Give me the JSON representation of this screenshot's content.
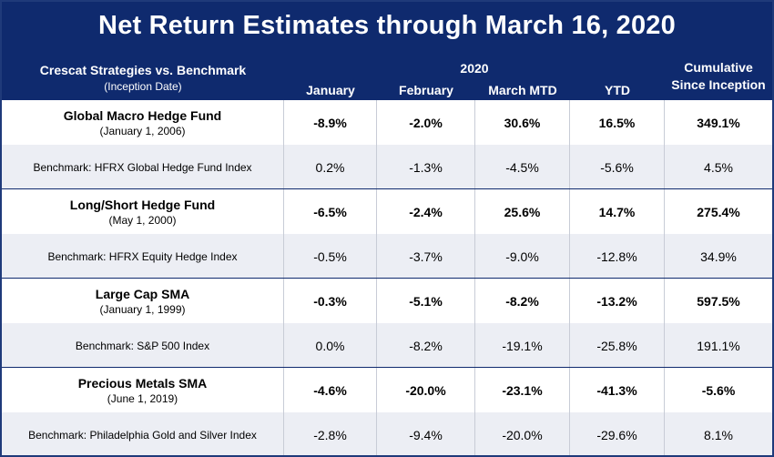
{
  "title": "Net Return Estimates through March 16, 2020",
  "header": {
    "strategies_label": "Crescat Strategies vs. Benchmark",
    "inception_label": "(Inception Date)",
    "year_label": "2020",
    "col_january": "January",
    "col_february": "February",
    "col_march": "March MTD",
    "col_ytd": "YTD",
    "col_cumulative_line1": "Cumulative",
    "col_cumulative_line2": "Since Inception"
  },
  "rows": [
    {
      "name": "Global Macro Hedge Fund",
      "date": "(January 1, 2006)",
      "jan": "-8.9%",
      "feb": "-2.0%",
      "mar": "30.6%",
      "ytd": "16.5%",
      "cum": "349.1%"
    },
    {
      "name": "Benchmark:  HFRX Global Hedge Fund Index",
      "jan": "0.2%",
      "feb": "-1.3%",
      "mar": "-4.5%",
      "ytd": "-5.6%",
      "cum": "4.5%"
    },
    {
      "name": "Long/Short Hedge Fund",
      "date": "(May 1, 2000)",
      "jan": "-6.5%",
      "feb": "-2.4%",
      "mar": "25.6%",
      "ytd": "14.7%",
      "cum": "275.4%"
    },
    {
      "name": "Benchmark:  HFRX Equity Hedge Index",
      "jan": "-0.5%",
      "feb": "-3.7%",
      "mar": "-9.0%",
      "ytd": "-12.8%",
      "cum": "34.9%"
    },
    {
      "name": "Large Cap SMA",
      "date": "(January 1, 1999)",
      "jan": "-0.3%",
      "feb": "-5.1%",
      "mar": "-8.2%",
      "ytd": "-13.2%",
      "cum": "597.5%"
    },
    {
      "name": "Benchmark: S&P 500 Index",
      "jan": "0.0%",
      "feb": "-8.2%",
      "mar": "-19.1%",
      "ytd": "-25.8%",
      "cum": "191.1%"
    },
    {
      "name": "Precious Metals SMA",
      "date": "(June 1, 2019)",
      "jan": "-4.6%",
      "feb": "-20.0%",
      "mar": "-23.1%",
      "ytd": "-41.3%",
      "cum": "-5.6%"
    },
    {
      "name": "Benchmark: Philadelphia Gold and Silver Index",
      "jan": "-2.8%",
      "feb": "-9.4%",
      "mar": "-20.0%",
      "ytd": "-29.6%",
      "cum": "8.1%"
    }
  ]
}
